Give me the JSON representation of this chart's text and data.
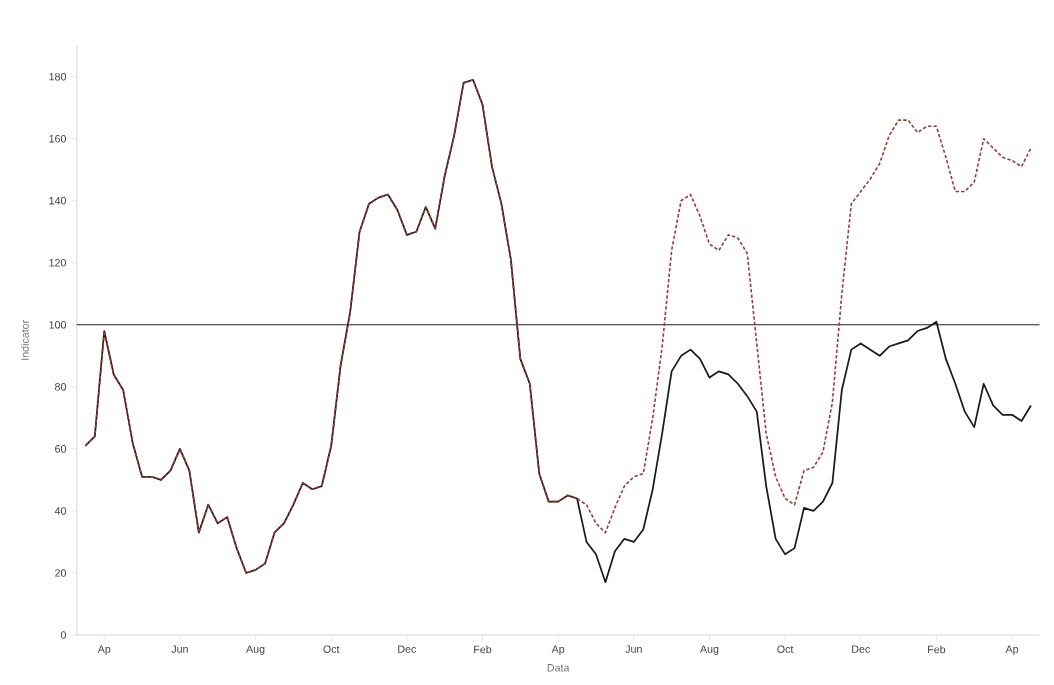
{
  "chart_data": {
    "type": "line",
    "xlabel": "Data",
    "ylabel": "Indicator",
    "categories": [
      null,
      null,
      "Ap",
      null,
      null,
      null,
      null,
      null,
      null,
      null,
      "Jun",
      null,
      null,
      null,
      null,
      null,
      null,
      null,
      "Aug",
      null,
      null,
      null,
      null,
      null,
      null,
      null,
      "Oct",
      null,
      null,
      null,
      null,
      null,
      null,
      null,
      "Dec",
      null,
      null,
      null,
      null,
      null,
      null,
      null,
      "Feb",
      null,
      null,
      null,
      null,
      null,
      null,
      null,
      "Ap",
      null,
      null,
      null,
      null,
      null,
      null,
      null,
      "Jun",
      null,
      null,
      null,
      null,
      null,
      null,
      null,
      "Aug",
      null,
      null,
      null,
      null,
      null,
      null,
      null,
      "Oct",
      null,
      null,
      null,
      null,
      null,
      null,
      null,
      "Dec",
      null,
      null,
      null,
      null,
      null,
      null,
      null,
      "Feb",
      null,
      null,
      null,
      null,
      null,
      null,
      null,
      "Ap",
      null,
      null
    ],
    "ylim": [
      0,
      190
    ],
    "yticks": [
      0,
      20,
      40,
      60,
      80,
      100,
      120,
      140,
      160,
      180
    ],
    "grid": false,
    "ref_lines": [
      {
        "axis": "y",
        "value": 100,
        "color": "#222222",
        "line_style": "solid"
      }
    ],
    "series": [
      {
        "color": "#1a1a1a",
        "line_style": "solid",
        "values": [
          61,
          64,
          98,
          84,
          79,
          62,
          51,
          51,
          50,
          53,
          60,
          53,
          33,
          42,
          36,
          38,
          28,
          20,
          21,
          23,
          33,
          36,
          42,
          49,
          47,
          48,
          61,
          87,
          104,
          130,
          139,
          141,
          142,
          137,
          129,
          130,
          138,
          131,
          148,
          161,
          178,
          179,
          171,
          151,
          139,
          121,
          89,
          81,
          52,
          43,
          43,
          45,
          44,
          30,
          26,
          17,
          27,
          31,
          30,
          34,
          47,
          65,
          85,
          90,
          92,
          89,
          83,
          85,
          84,
          81,
          77,
          72,
          48,
          31,
          26,
          28,
          41,
          40,
          43,
          49,
          79,
          92,
          94,
          92,
          90,
          93,
          94,
          95,
          98,
          99,
          101,
          89,
          81,
          72,
          67,
          81,
          74,
          71,
          71,
          69,
          74
        ]
      },
      {
        "color": "#9a3b34",
        "line_style": "dashed",
        "values": [
          61,
          64,
          98,
          84,
          79,
          62,
          51,
          51,
          50,
          53,
          60,
          53,
          33,
          42,
          36,
          38,
          28,
          20,
          21,
          23,
          33,
          36,
          42,
          49,
          47,
          48,
          61,
          87,
          104,
          130,
          139,
          141,
          142,
          137,
          129,
          130,
          138,
          131,
          148,
          161,
          178,
          179,
          171,
          151,
          139,
          121,
          89,
          81,
          52,
          43,
          43,
          45,
          44,
          42,
          36,
          33,
          41,
          48,
          51,
          52,
          70,
          93,
          124,
          140,
          142,
          135,
          126,
          124,
          129,
          128,
          123,
          94,
          65,
          51,
          44,
          42,
          53,
          54,
          59,
          75,
          110,
          139,
          143,
          147,
          152,
          161,
          166,
          166,
          162,
          164,
          164,
          154,
          143,
          143,
          146,
          160,
          157,
          154,
          153,
          151,
          157
        ]
      }
    ]
  }
}
